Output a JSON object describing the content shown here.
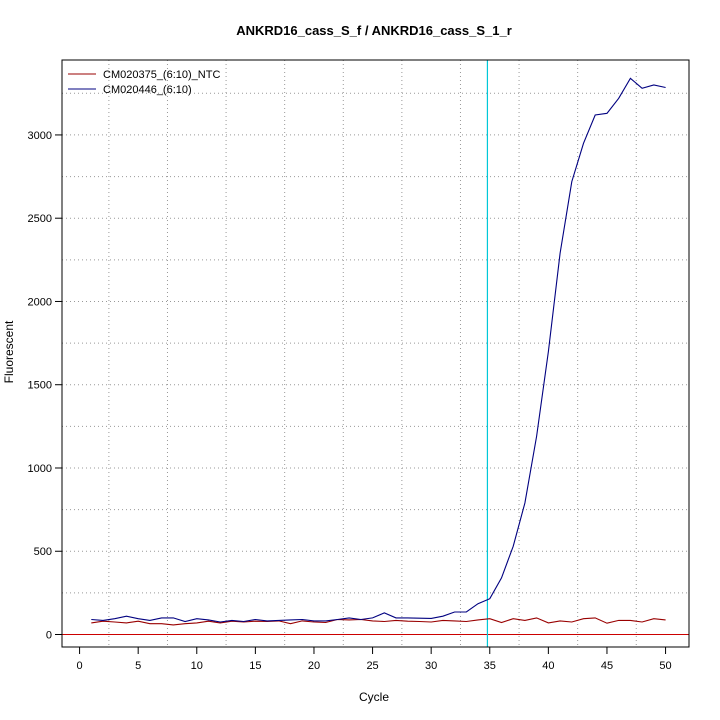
{
  "chart_data": {
    "type": "line",
    "title": "ANKRD16_cass_S_f / ANKRD16_cass_S_1_r",
    "xlabel": "Cycle",
    "ylabel": "Fluorescent",
    "xlim": [
      -1.5,
      52
    ],
    "ylim": [
      -75,
      3450
    ],
    "x_ticks": [
      0,
      5,
      10,
      15,
      20,
      25,
      30,
      35,
      40,
      45,
      50
    ],
    "y_ticks": [
      0,
      500,
      1000,
      1500,
      2000,
      2500,
      3000
    ],
    "grid": true,
    "legend_position": "top-left",
    "threshold": {
      "cycle": 34.8,
      "color": "#00c8d8"
    },
    "baseline": {
      "value": 0,
      "color": "#cc0000"
    },
    "series": [
      {
        "name": "CM020375_(6:10)_NTC",
        "color": "#990000",
        "x": [
          1,
          2,
          3,
          4,
          5,
          6,
          7,
          8,
          9,
          10,
          11,
          12,
          13,
          14,
          15,
          16,
          17,
          18,
          19,
          20,
          21,
          22,
          23,
          24,
          25,
          26,
          27,
          28,
          29,
          30,
          31,
          32,
          33,
          34,
          35,
          36,
          37,
          38,
          39,
          40,
          41,
          42,
          43,
          44,
          45,
          46,
          47,
          48,
          49,
          50
        ],
        "y": [
          70,
          80,
          75,
          70,
          80,
          65,
          65,
          58,
          65,
          70,
          80,
          70,
          80,
          75,
          80,
          78,
          82,
          65,
          82,
          75,
          72,
          90,
          88,
          90,
          82,
          78,
          85,
          80,
          78,
          75,
          85,
          82,
          78,
          88,
          95,
          72,
          95,
          85,
          100,
          70,
          82,
          75,
          95,
          100,
          68,
          85,
          85,
          75,
          95,
          88
        ]
      },
      {
        "name": "CM020446_(6:10)",
        "color": "#000080",
        "x": [
          1,
          2,
          3,
          4,
          5,
          6,
          7,
          8,
          9,
          10,
          11,
          12,
          13,
          14,
          15,
          16,
          17,
          18,
          19,
          20,
          21,
          22,
          23,
          24,
          25,
          26,
          27,
          28,
          29,
          30,
          31,
          32,
          33,
          34,
          35,
          36,
          37,
          38,
          39,
          40,
          41,
          42,
          43,
          44,
          45,
          46,
          47,
          48,
          49,
          50
        ],
        "y": [
          90,
          85,
          95,
          110,
          95,
          85,
          100,
          100,
          78,
          95,
          88,
          75,
          85,
          78,
          90,
          82,
          85,
          88,
          90,
          82,
          82,
          90,
          100,
          90,
          100,
          130,
          100,
          100,
          98,
          97,
          110,
          135,
          135,
          185,
          215,
          340,
          530,
          790,
          1190,
          1700,
          2290,
          2720,
          2950,
          3120,
          3130,
          3220,
          3340,
          3280,
          3300,
          3285
        ]
      }
    ]
  }
}
